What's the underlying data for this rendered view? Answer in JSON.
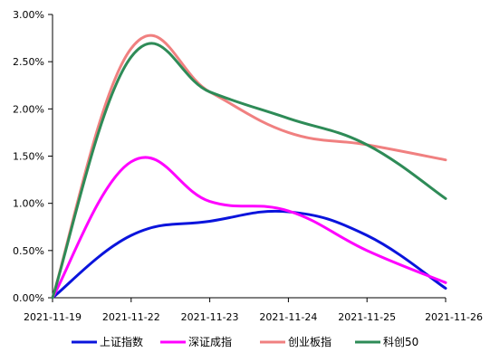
{
  "chart_data": {
    "type": "line",
    "title": "",
    "xlabel": "",
    "ylabel": "",
    "x": [
      "2021-11-19",
      "2021-11-22",
      "2021-11-23",
      "2021-11-24",
      "2021-11-25",
      "2021-11-26"
    ],
    "y_ticks": [
      "0.00%",
      "0.50%",
      "1.00%",
      "1.50%",
      "2.00%",
      "2.50%",
      "3.00%"
    ],
    "y_tick_values": [
      0,
      0.5,
      1.0,
      1.5,
      2.0,
      2.5,
      3.0
    ],
    "ylim": [
      0,
      3.0
    ],
    "y_unit": "percent",
    "smooth": true,
    "grid": false,
    "legend_position": "bottom",
    "series": [
      {
        "name": "上证指数",
        "color": "#0a14dc",
        "values": [
          0.0,
          0.66,
          0.81,
          0.91,
          0.66,
          0.1
        ]
      },
      {
        "name": "深证成指",
        "color": "#ff00ff",
        "values": [
          0.0,
          1.44,
          1.02,
          0.92,
          0.5,
          0.16
        ]
      },
      {
        "name": "创业板指",
        "color": "#f08080",
        "values": [
          0.0,
          2.64,
          2.18,
          1.75,
          1.62,
          1.46
        ]
      },
      {
        "name": "科创50",
        "color": "#2e8b57",
        "values": [
          0.0,
          2.55,
          2.18,
          1.9,
          1.62,
          1.05
        ]
      }
    ]
  }
}
